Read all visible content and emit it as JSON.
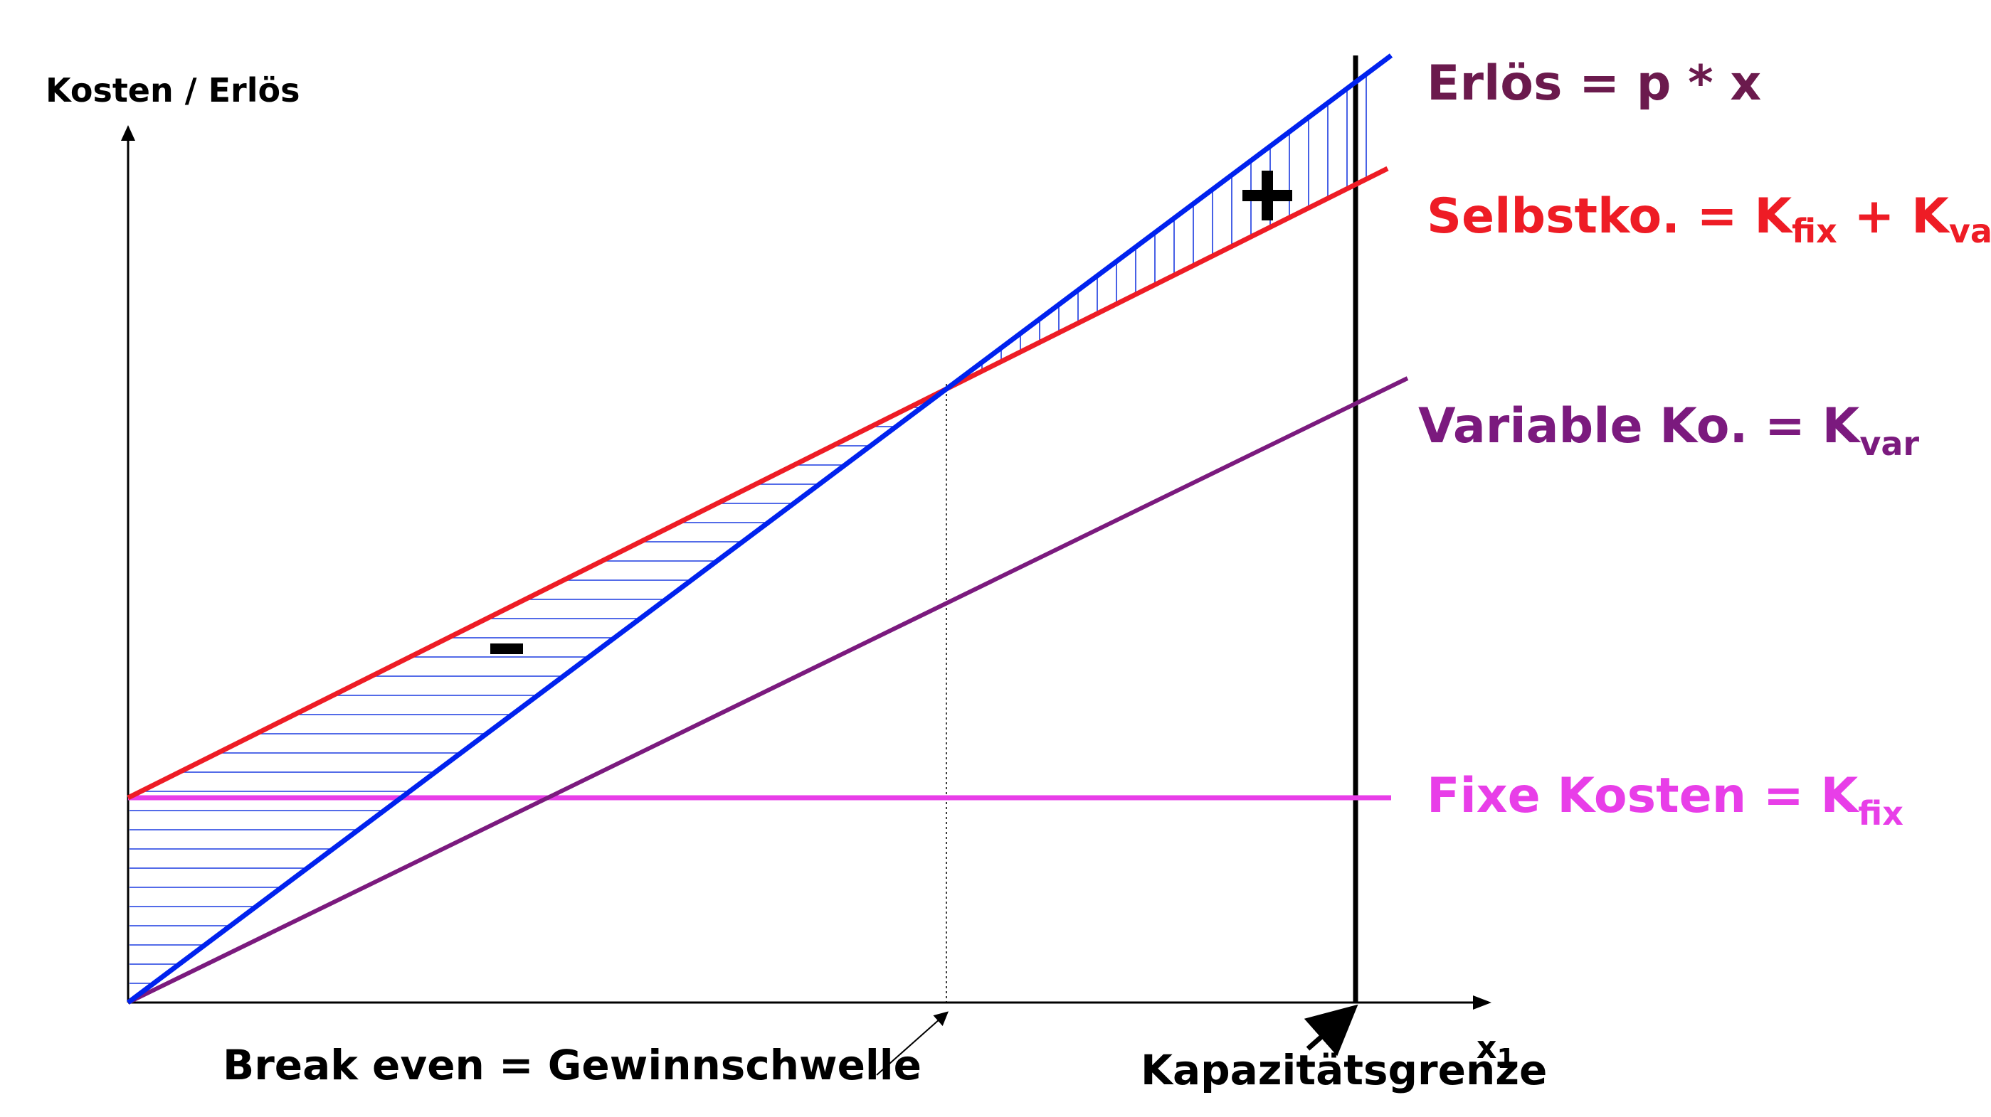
{
  "axes": {
    "y_label": "Kosten / Erlös",
    "x_label_main": "x",
    "x_label_sub": "1"
  },
  "lines": {
    "erloes": {
      "label": "Erlös = p * x",
      "color": "#0022ee",
      "label_color": "#6b1a4d"
    },
    "selbstkosten": {
      "label_main": "Selbstko. = K",
      "label_sub1": "fix",
      "label_mid": " + K",
      "label_sub2": "var",
      "color": "#ee1c25"
    },
    "variable": {
      "label_main": "Variable Ko. = K",
      "label_sub": "var",
      "color": "#7b1a7e"
    },
    "fix": {
      "label_main": "Fixe Kosten = K",
      "label_sub": "fix",
      "color": "#e83ee8"
    }
  },
  "markers": {
    "minus": "-",
    "plus": "+"
  },
  "annotations": {
    "break_even": "Break even = Gewinnschwelle",
    "capacity": "Kapazitätsgrenze"
  },
  "colors": {
    "hatch": "#1a3ae0",
    "axis": "#000000"
  }
}
